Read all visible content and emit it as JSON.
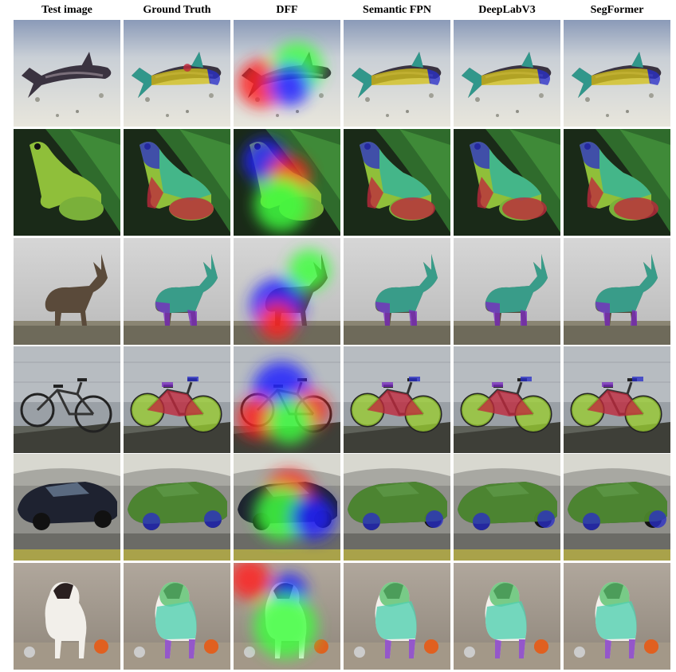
{
  "figure": {
    "column_headers": [
      "Test image",
      "Ground Truth",
      "DFF",
      "Semantic FPN",
      "DeepLabV3",
      "SegFormer"
    ],
    "rows": [
      {
        "subject": "fish"
      },
      {
        "subject": "frog"
      },
      {
        "subject": "ibex"
      },
      {
        "subject": "tandem bicycle"
      },
      {
        "subject": "sports car"
      },
      {
        "subject": "dog"
      }
    ],
    "overlay_colors": {
      "part_a": "#d4c21c",
      "part_b": "#2fb3a0",
      "part_c": "#c0283c",
      "part_d": "#2a2fc8",
      "part_e": "#7a2bc0",
      "part_f": "#9acd32",
      "heat_red": "#ff2020",
      "heat_green": "#40ff40",
      "heat_blue": "#2020ff"
    }
  }
}
